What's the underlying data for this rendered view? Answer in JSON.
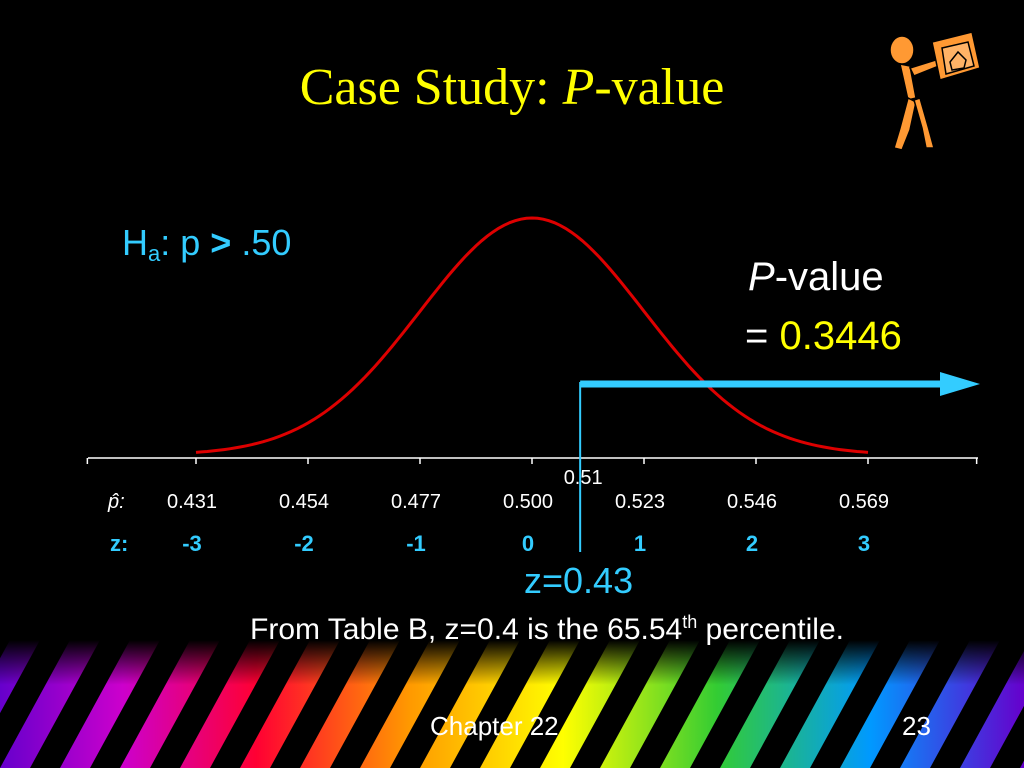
{
  "slide": {
    "title_prefix": "Case Study: ",
    "title_italic": "P",
    "title_suffix": "-value",
    "hypothesis": {
      "h": "H",
      "sub": "a",
      "colon_p": ": p",
      "op": ">",
      "value": ".50"
    },
    "pvalue_label_italic": "P",
    "pvalue_label_rest": "-value",
    "pvalue_eq": "= ",
    "pvalue_number": "0.3446",
    "z_observed": "z=0.43",
    "note_main": "From Table B, z=0.4 is the 65.54",
    "note_sup": "th",
    "note_end": " percentile.",
    "footer_chapter": "Chapter 22",
    "footer_page": "23"
  },
  "chart_data": {
    "type": "line",
    "description_curve": "normal density",
    "phat_label": "p̂:",
    "z_label": "z:",
    "phat_ticks": [
      "0.431",
      "0.454",
      "0.477",
      "0.500",
      "0.523",
      "0.546",
      "0.569"
    ],
    "z_ticks": [
      "-3",
      "-2",
      "-1",
      "0",
      "1",
      "2",
      "3"
    ],
    "z_values": [
      -3,
      -2,
      -1,
      0,
      1,
      2,
      3
    ],
    "observed_phat_label": "0.51",
    "observed_z": 0.43,
    "mean": 0.5,
    "sd": 0.023,
    "colors": {
      "curve": "#dd0000",
      "arrow": "#33ccff",
      "axis": "#ffffff"
    }
  }
}
